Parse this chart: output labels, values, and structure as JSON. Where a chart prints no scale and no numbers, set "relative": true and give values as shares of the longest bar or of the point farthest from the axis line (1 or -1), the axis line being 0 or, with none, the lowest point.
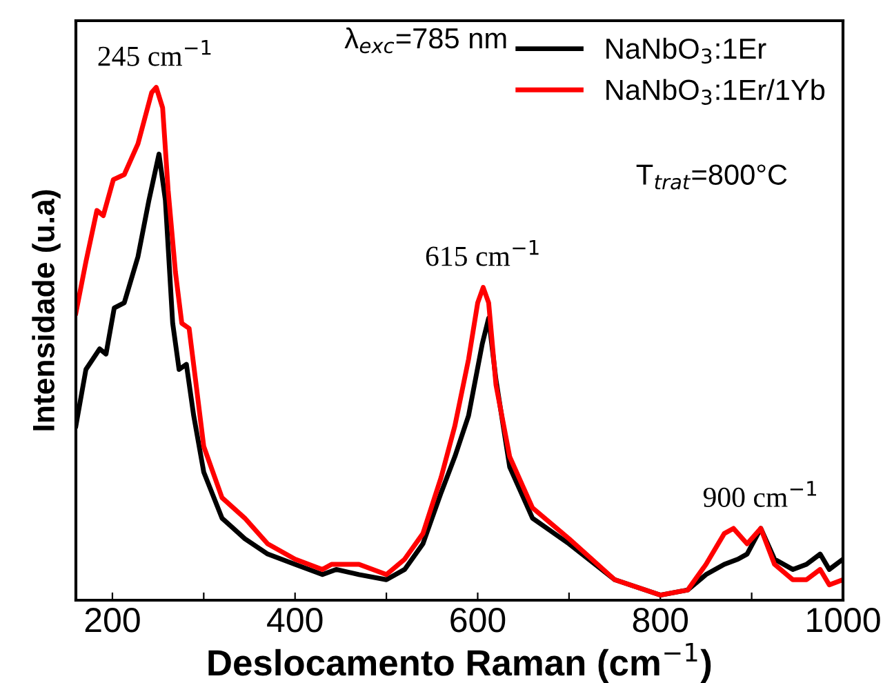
{
  "chart_data": {
    "type": "line",
    "relative": true,
    "xlabel": "Deslocamento Raman (cm$^{−1}$)",
    "ylabel": "Intensidade (u.a)",
    "xlim": [
      160,
      1000
    ],
    "xticks": [
      200,
      {
        "value": 300,
        "label": null
      },
      400,
      {
        "value": 500,
        "label": null
      },
      600,
      {
        "value": 700,
        "label": null
      },
      800,
      {
        "value": 900,
        "label": null
      },
      1000
    ],
    "legend": "top right",
    "grid": false,
    "marker": "none",
    "line_style": "solid",
    "tick_labels": "x",
    "annotations": [
      {
        "text": "245 cm$^{−1}$",
        "x": 247,
        "y": 1.0
      },
      {
        "text": "615 cm$^{−1}$",
        "x": 606,
        "y": 0.61
      },
      {
        "text": "900 cm$^{−1}$",
        "x": 910,
        "y": 0.14
      },
      "λ$_{exc}$=785 nm",
      "T$_{trat}$=800°C"
    ],
    "series": [
      {
        "name": "NaNbO$_{3}$:1Er",
        "color": "#000000",
        "x": [
          160,
          171,
          186,
          193,
          202,
          213,
          228,
          240,
          251,
          258,
          266,
          273,
          281,
          289,
          300,
          320,
          345,
          370,
          400,
          430,
          445,
          470,
          500,
          520,
          540,
          560,
          575,
          590,
          605,
          612,
          620,
          635,
          660,
          700,
          750,
          800,
          830,
          850,
          870,
          885,
          895,
          910,
          925,
          945,
          960,
          975,
          985,
          1000
        ],
        "values": [
          0.34,
          0.45,
          0.49,
          0.48,
          0.57,
          0.58,
          0.67,
          0.78,
          0.87,
          0.78,
          0.54,
          0.45,
          0.46,
          0.36,
          0.25,
          0.16,
          0.12,
          0.09,
          0.07,
          0.05,
          0.06,
          0.05,
          0.04,
          0.06,
          0.11,
          0.21,
          0.28,
          0.36,
          0.5,
          0.55,
          0.43,
          0.26,
          0.16,
          0.11,
          0.04,
          0.01,
          0.02,
          0.05,
          0.07,
          0.08,
          0.09,
          0.14,
          0.08,
          0.06,
          0.07,
          0.09,
          0.06,
          0.08
        ]
      },
      {
        "name": "NaNbO$_{3}$:1Er/1Yb",
        "color": "#ff0000",
        "x": [
          160,
          171,
          183,
          190,
          201,
          213,
          228,
          243,
          248,
          255,
          261,
          269,
          276,
          284,
          291,
          300,
          320,
          345,
          370,
          400,
          430,
          440,
          470,
          500,
          520,
          540,
          560,
          575,
          590,
          600,
          606,
          612,
          620,
          635,
          660,
          700,
          750,
          800,
          830,
          850,
          870,
          880,
          895,
          910,
          925,
          945,
          960,
          975,
          985,
          1000
        ],
        "values": [
          0.56,
          0.66,
          0.76,
          0.75,
          0.82,
          0.83,
          0.89,
          0.99,
          1.0,
          0.96,
          0.8,
          0.64,
          0.54,
          0.53,
          0.43,
          0.3,
          0.2,
          0.16,
          0.11,
          0.08,
          0.06,
          0.07,
          0.07,
          0.05,
          0.08,
          0.13,
          0.24,
          0.34,
          0.47,
          0.58,
          0.61,
          0.58,
          0.42,
          0.28,
          0.18,
          0.12,
          0.04,
          0.01,
          0.02,
          0.07,
          0.13,
          0.14,
          0.11,
          0.14,
          0.07,
          0.04,
          0.04,
          0.06,
          0.03,
          0.04
        ]
      }
    ]
  }
}
